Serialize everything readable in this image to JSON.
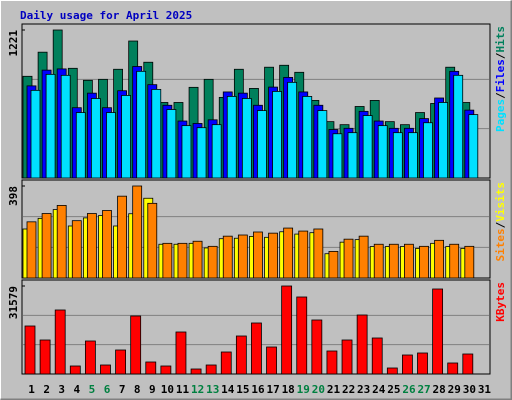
{
  "title": "Daily usage for April 2025",
  "chart_data": [
    {
      "type": "bar",
      "ylim": [
        0,
        1221
      ],
      "yticks": [
        1221
      ],
      "grid_divisions": 3,
      "legend_separator": "/",
      "series": [
        {
          "name": "Hits",
          "color": "#00805c",
          "values": [
            839,
            1038,
            1221,
            905,
            806,
            814,
            897,
            1130,
            955,
            623,
            623,
            748,
            814,
            665,
            897,
            739,
            914,
            930,
            872,
            640,
            465,
            440,
            590,
            640,
            465,
            440,
            540,
            615,
            914,
            623,
            null
          ]
        },
        {
          "name": "Files",
          "color": "#0000ff",
          "values": [
            760,
            890,
            900,
            580,
            700,
            580,
            720,
            920,
            770,
            600,
            470,
            450,
            480,
            710,
            700,
            600,
            750,
            830,
            710,
            600,
            400,
            410,
            550,
            470,
            410,
            410,
            490,
            660,
            880,
            560,
            null
          ]
        },
        {
          "name": "Pages",
          "color": "#00e0ff",
          "values": [
            723,
            855,
            847,
            540,
            656,
            540,
            681,
            880,
            731,
            565,
            432,
            415,
            440,
            673,
            656,
            556,
            714,
            789,
            673,
            556,
            365,
            374,
            515,
            432,
            374,
            374,
            456,
            623,
            847,
            523,
            null
          ]
        }
      ]
    },
    {
      "type": "bar",
      "ylim": [
        0,
        398
      ],
      "yticks": [
        398
      ],
      "grid_divisions": 3,
      "legend_separator": "/",
      "series": [
        {
          "name": "Visits",
          "color": "#ffff00",
          "values": [
            212,
            258,
            296,
            225,
            260,
            270,
            225,
            278,
            345,
            146,
            146,
            150,
            130,
            170,
            172,
            180,
            176,
            200,
            190,
            196,
            105,
            155,
            166,
            136,
            136,
            136,
            128,
            150,
            136,
            128,
            null
          ]
        },
        {
          "name": "Sites",
          "color": "#ff8000",
          "values": [
            243,
            279,
            314,
            248,
            279,
            292,
            354,
            398,
            323,
            150,
            150,
            159,
            137,
            181,
            186,
            199,
            194,
            216,
            203,
            212,
            115,
            168,
            181,
            146,
            146,
            146,
            137,
            163,
            146,
            137,
            null
          ]
        }
      ]
    },
    {
      "type": "bar",
      "ylim": [
        0,
        31579
      ],
      "yticks": [
        31579
      ],
      "grid_divisions": 3,
      "categories": [
        "1",
        "2",
        "3",
        "4",
        "5",
        "6",
        "7",
        "8",
        "9",
        "10",
        "11",
        "12",
        "13",
        "14",
        "15",
        "16",
        "17",
        "18",
        "19",
        "20",
        "21",
        "22",
        "23",
        "24",
        "25",
        "26",
        "27",
        "28",
        "29",
        "30",
        "31"
      ],
      "category_colors": [
        "#000000",
        "#000000",
        "#000000",
        "#000000",
        "#008040",
        "#008040",
        "#000000",
        "#000000",
        "#000000",
        "#000000",
        "#000000",
        "#008040",
        "#008040",
        "#000000",
        "#000000",
        "#000000",
        "#000000",
        "#000000",
        "#008040",
        "#008040",
        "#000000",
        "#000000",
        "#000000",
        "#000000",
        "#000000",
        "#008040",
        "#008040",
        "#000000",
        "#000000",
        "#000000",
        "#000000"
      ],
      "series": [
        {
          "name": "KBytes",
          "color": "#ff0000",
          "values": [
            17227,
            12203,
            22970,
            2871,
            11844,
            3230,
            8614,
            20816,
            4307,
            2871,
            15074,
            1794,
            3230,
            7896,
            13638,
            18304,
            9690,
            31579,
            27634,
            19381,
            8255,
            12203,
            21175,
            12921,
            2153,
            6819,
            7537,
            30503,
            3948,
            7178,
            null
          ]
        }
      ]
    }
  ]
}
